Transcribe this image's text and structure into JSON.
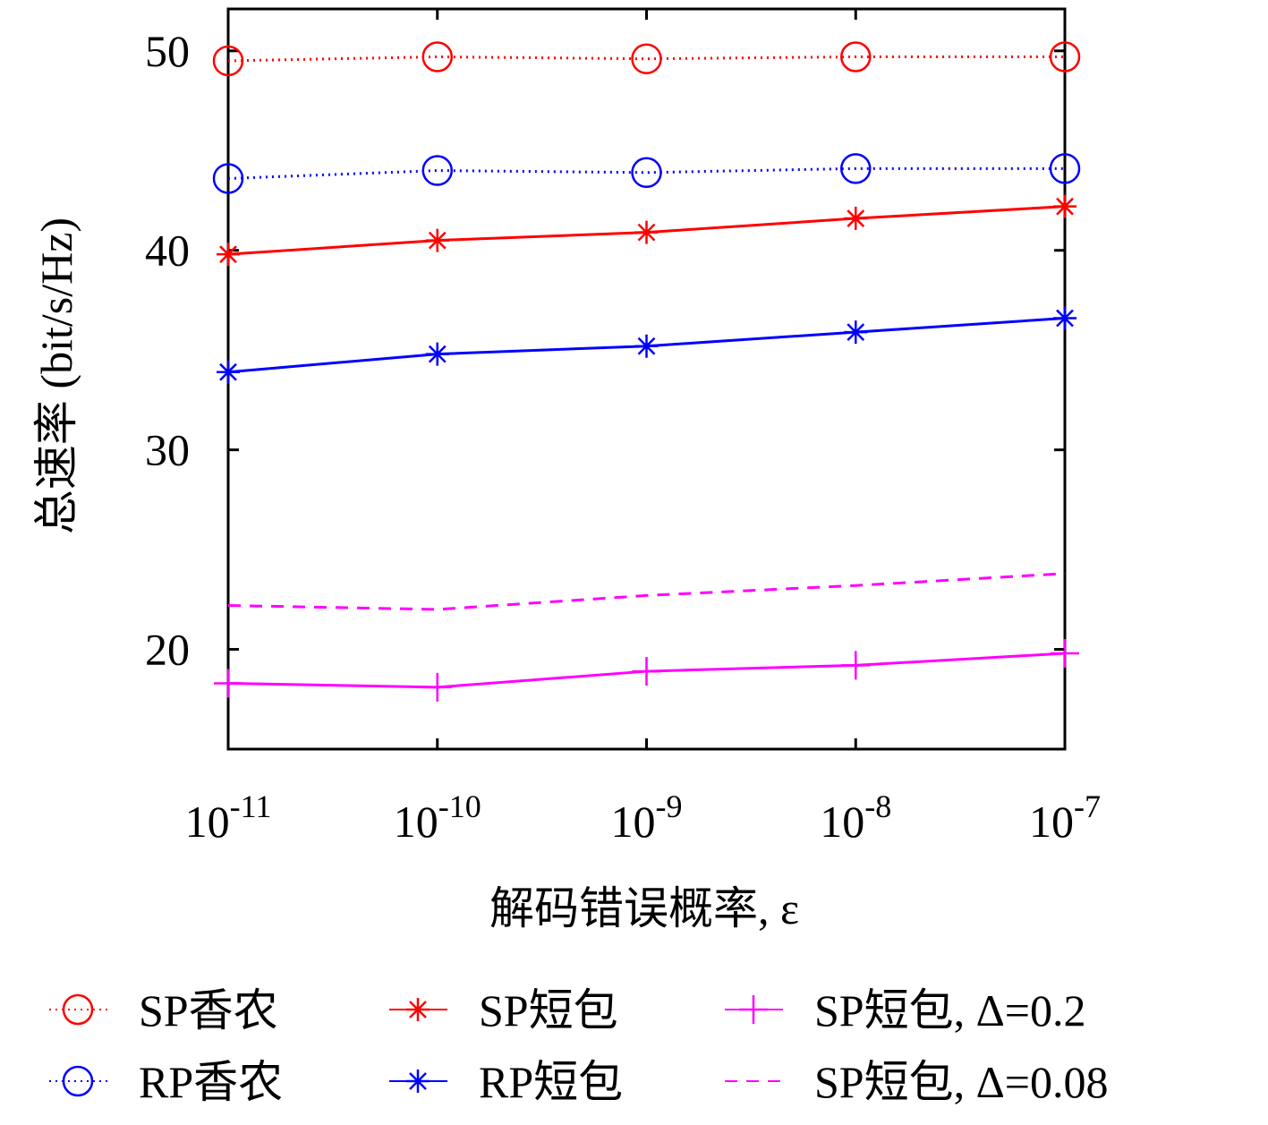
{
  "chart_data": {
    "type": "line",
    "x_label": "解码错误概率, ε",
    "y_label": "总速率 (bit/s/Hz)",
    "x": [
      1e-11,
      1e-10,
      1e-09,
      1e-08,
      1e-07
    ],
    "xlim": [
      1e-11,
      1e-07
    ],
    "xscale": "log",
    "xticks": [
      {
        "value": 1e-11,
        "label": "10-11"
      },
      {
        "value": 1e-10,
        "label": "10-10"
      },
      {
        "value": 1e-09,
        "label": "10-9"
      },
      {
        "value": 1e-08,
        "label": "10-8"
      },
      {
        "value": 1e-07,
        "label": "10-7"
      }
    ],
    "ylim": [
      15,
      52.1
    ],
    "yticks": [
      20,
      30,
      40,
      50
    ],
    "grid": false,
    "legend": "bottom",
    "series": [
      {
        "name": "SP香农",
        "color": "#ff0000",
        "marker": "circle",
        "linestyle": "dotted",
        "values": [
          49.5,
          49.7,
          49.6,
          49.7,
          49.7
        ]
      },
      {
        "name": "RP香农",
        "color": "#0000ff",
        "marker": "circle",
        "linestyle": "dotted",
        "values": [
          43.6,
          44.0,
          43.9,
          44.1,
          44.1
        ]
      },
      {
        "name": "SP短包",
        "color": "#ff0000",
        "marker": "star",
        "linestyle": "solid",
        "values": [
          39.8,
          40.5,
          40.9,
          41.6,
          42.2
        ]
      },
      {
        "name": "RP短包",
        "color": "#0000ff",
        "marker": "star",
        "linestyle": "solid",
        "values": [
          33.9,
          34.8,
          35.2,
          35.9,
          36.6
        ]
      },
      {
        "name": "SP短包, Δ=0.2",
        "color": "#ff00ff",
        "marker": "plus",
        "linestyle": "solid",
        "values": [
          18.3,
          18.1,
          18.9,
          19.2,
          19.8
        ]
      },
      {
        "name": "SP短包, Δ=0.08",
        "color": "#ff00ff",
        "marker": "none",
        "linestyle": "dashed",
        "values": [
          22.2,
          22.0,
          22.7,
          23.2,
          23.8
        ]
      }
    ]
  }
}
